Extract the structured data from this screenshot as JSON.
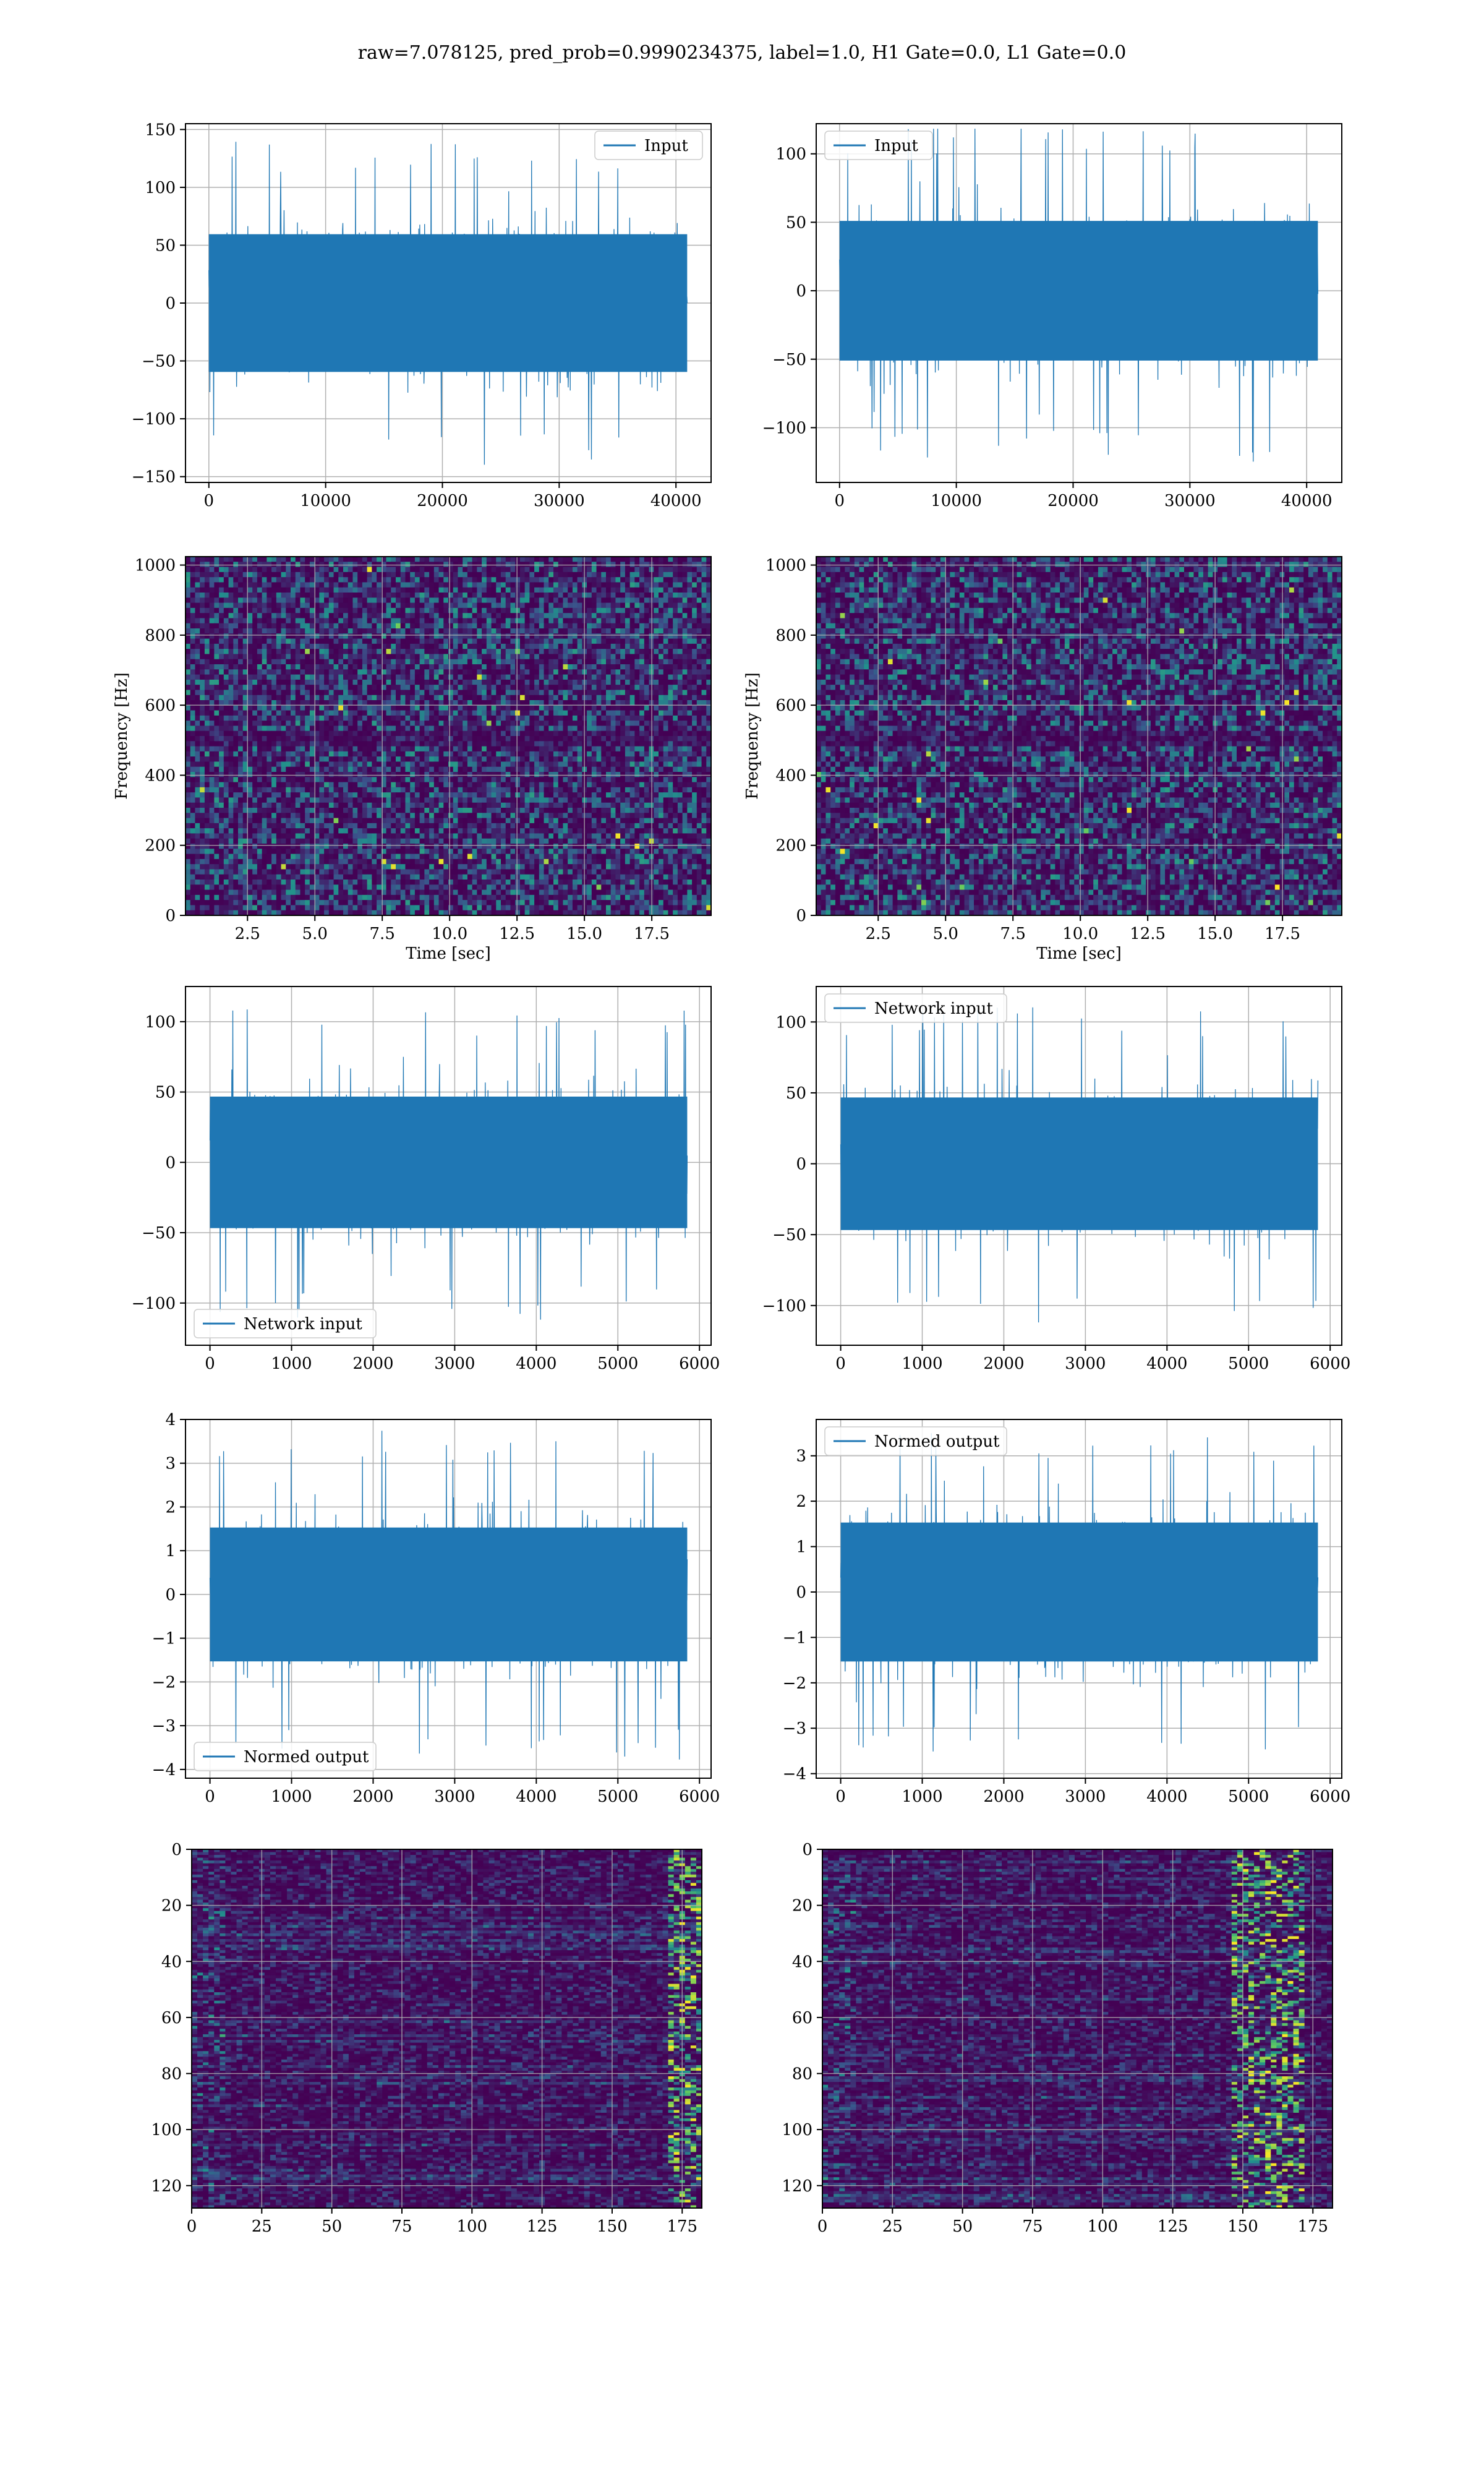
{
  "suptitle": "raw=7.078125, pred_prob=0.9990234375, label=1.0, H1 Gate=0.0, L1 Gate=0.0",
  "colors": {
    "line": "#1f77b4",
    "grid": "#b0b0b0",
    "viridis": [
      "#440154",
      "#3b528b",
      "#21918c",
      "#5ec962",
      "#fde725"
    ]
  },
  "chart_data": [
    {
      "type": "line",
      "legend": "Input",
      "legend_loc": "upper right",
      "x_range": [
        0,
        40960
      ],
      "ylim": [
        -155,
        155
      ],
      "amplitude": 70,
      "peak": 140,
      "xticks": [
        0,
        10000,
        20000,
        30000,
        40000
      ],
      "yticks": [
        -150,
        -100,
        -50,
        0,
        50,
        100,
        150
      ],
      "xlabel": "",
      "ylabel": "",
      "grid": true
    },
    {
      "type": "line",
      "legend": "Input",
      "legend_loc": "upper left",
      "x_range": [
        0,
        40960
      ],
      "ylim": [
        -140,
        122
      ],
      "amplitude": 60,
      "peak": 125,
      "xticks": [
        0,
        10000,
        20000,
        30000,
        40000
      ],
      "yticks": [
        -100,
        -50,
        0,
        50,
        100
      ],
      "xlabel": "",
      "ylabel": "",
      "grid": true
    },
    {
      "type": "heatmap",
      "colormap": "viridis",
      "xlim": [
        0.2,
        19.7
      ],
      "ylim": [
        0,
        1024
      ],
      "xticks": [
        "2.5",
        "5.0",
        "7.5",
        "10.0",
        "12.5",
        "15.0",
        "17.5"
      ],
      "yticks": [
        "0",
        "200",
        "400",
        "600",
        "800",
        "1000"
      ],
      "xlabel": "Time [sec]",
      "ylabel": "Frequency [Hz]",
      "grid": true
    },
    {
      "type": "heatmap",
      "colormap": "viridis",
      "xlim": [
        0.2,
        19.7
      ],
      "ylim": [
        0,
        1024
      ],
      "xticks": [
        "2.5",
        "5.0",
        "7.5",
        "10.0",
        "12.5",
        "15.0",
        "17.5"
      ],
      "yticks": [
        "0",
        "200",
        "400",
        "600",
        "800",
        "1000"
      ],
      "xlabel": "Time [sec]",
      "ylabel": "Frequency [Hz]",
      "grid": true
    },
    {
      "type": "line",
      "legend": "Network input",
      "legend_loc": "lower left",
      "x_range": [
        0,
        5850
      ],
      "ylim": [
        -130,
        125
      ],
      "amplitude": 55,
      "peak": 112,
      "xticks": [
        0,
        1000,
        2000,
        3000,
        4000,
        5000,
        6000
      ],
      "yticks": [
        -100,
        -50,
        0,
        50,
        100
      ],
      "xlabel": "",
      "ylabel": "",
      "grid": true
    },
    {
      "type": "line",
      "legend": "Network input",
      "legend_loc": "upper left",
      "x_range": [
        0,
        5850
      ],
      "ylim": [
        -128,
        125
      ],
      "amplitude": 55,
      "peak": 112,
      "xticks": [
        0,
        1000,
        2000,
        3000,
        4000,
        5000,
        6000
      ],
      "yticks": [
        -100,
        -50,
        0,
        50,
        100
      ],
      "xlabel": "",
      "ylabel": "",
      "grid": true
    },
    {
      "type": "line",
      "legend": "Normed output",
      "legend_loc": "lower left",
      "x_range": [
        0,
        5850
      ],
      "ylim": [
        -4.2,
        4.0
      ],
      "amplitude": 1.8,
      "peak": 3.8,
      "xticks": [
        0,
        1000,
        2000,
        3000,
        4000,
        5000,
        6000
      ],
      "yticks": [
        -4,
        -3,
        -2,
        -1,
        0,
        1,
        2,
        3,
        4
      ],
      "xlabel": "",
      "ylabel": "",
      "grid": true
    },
    {
      "type": "line",
      "legend": "Normed output",
      "legend_loc": "upper left",
      "x_range": [
        0,
        5850
      ],
      "ylim": [
        -4.1,
        3.8
      ],
      "amplitude": 1.8,
      "peak": 3.6,
      "xticks": [
        0,
        1000,
        2000,
        3000,
        4000,
        5000,
        6000
      ],
      "yticks": [
        -4,
        -3,
        -2,
        -1,
        0,
        1,
        2,
        3
      ],
      "xlabel": "",
      "ylabel": "",
      "grid": true
    },
    {
      "type": "heatmap",
      "colormap": "viridis",
      "xlim": [
        0,
        182
      ],
      "ylim": [
        128,
        0
      ],
      "xticks": [
        "0",
        "25",
        "50",
        "75",
        "100",
        "125",
        "150",
        "175"
      ],
      "yticks": [
        "0",
        "20",
        "40",
        "60",
        "80",
        "100",
        "120"
      ],
      "hot_column_range": [
        170,
        182
      ],
      "xlabel": "",
      "ylabel": "",
      "grid": true
    },
    {
      "type": "heatmap",
      "colormap": "viridis",
      "xlim": [
        0,
        182
      ],
      "ylim": [
        128,
        0
      ],
      "xticks": [
        "0",
        "25",
        "50",
        "75",
        "100",
        "125",
        "150",
        "175"
      ],
      "yticks": [
        "0",
        "20",
        "40",
        "60",
        "80",
        "100",
        "120"
      ],
      "hot_column_range": [
        145,
        170
      ],
      "xlabel": "",
      "ylabel": "",
      "grid": true
    }
  ]
}
